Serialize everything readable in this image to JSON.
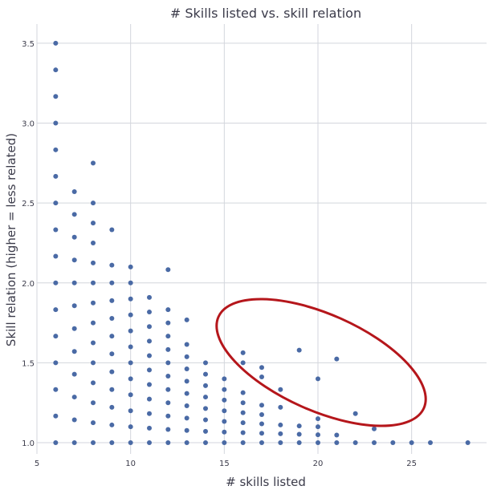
{
  "chart_data": {
    "type": "scatter",
    "title": "# Skills listed vs. skill relation",
    "xlabel": "# skills listed",
    "ylabel": "Skill relation (higher = less related)",
    "xlim": [
      5,
      29
    ],
    "ylim": [
      0.93,
      3.62
    ],
    "xticks": [
      "5",
      "10",
      "15",
      "20",
      "25"
    ],
    "yticks": [
      "1.0",
      "1.5",
      "2.0",
      "2.5",
      "3.0",
      "3.5"
    ],
    "grid": true,
    "colors": {
      "points": "#4a6aa5",
      "annotation": "#b5161b"
    },
    "points": [
      [
        6,
        1.0
      ],
      [
        6,
        1.167
      ],
      [
        6,
        1.333
      ],
      [
        6,
        1.5
      ],
      [
        6,
        1.667
      ],
      [
        6,
        1.833
      ],
      [
        6,
        2.0
      ],
      [
        6,
        2.167
      ],
      [
        6,
        2.333
      ],
      [
        6,
        2.5
      ],
      [
        6,
        2.667
      ],
      [
        6,
        2.833
      ],
      [
        6,
        3.0
      ],
      [
        6,
        3.167
      ],
      [
        6,
        3.333
      ],
      [
        6,
        3.5
      ],
      [
        7,
        1.0
      ],
      [
        7,
        1.143
      ],
      [
        7,
        1.286
      ],
      [
        7,
        1.429
      ],
      [
        7,
        1.571
      ],
      [
        7,
        1.714
      ],
      [
        7,
        1.857
      ],
      [
        7,
        2.0
      ],
      [
        7,
        2.143
      ],
      [
        7,
        2.286
      ],
      [
        7,
        2.429
      ],
      [
        7,
        2.571
      ],
      [
        8,
        1.0
      ],
      [
        8,
        1.125
      ],
      [
        8,
        1.25
      ],
      [
        8,
        1.375
      ],
      [
        8,
        1.5
      ],
      [
        8,
        1.625
      ],
      [
        8,
        1.75
      ],
      [
        8,
        1.875
      ],
      [
        8,
        2.0
      ],
      [
        8,
        2.125
      ],
      [
        8,
        2.25
      ],
      [
        8,
        2.375
      ],
      [
        8,
        2.5
      ],
      [
        8,
        2.75
      ],
      [
        9,
        1.0
      ],
      [
        9,
        1.111
      ],
      [
        9,
        1.222
      ],
      [
        9,
        1.333
      ],
      [
        9,
        1.444
      ],
      [
        9,
        1.556
      ],
      [
        9,
        1.667
      ],
      [
        9,
        1.778
      ],
      [
        9,
        1.889
      ],
      [
        9,
        2.0
      ],
      [
        9,
        2.111
      ],
      [
        9,
        2.333
      ],
      [
        10,
        1.0
      ],
      [
        10,
        1.1
      ],
      [
        10,
        1.2
      ],
      [
        10,
        1.3
      ],
      [
        10,
        1.4
      ],
      [
        10,
        1.5
      ],
      [
        10,
        1.6
      ],
      [
        10,
        1.7
      ],
      [
        10,
        1.8
      ],
      [
        10,
        1.9
      ],
      [
        10,
        2.0
      ],
      [
        10,
        2.1
      ],
      [
        11,
        1.0
      ],
      [
        11,
        1.091
      ],
      [
        11,
        1.182
      ],
      [
        11,
        1.273
      ],
      [
        11,
        1.364
      ],
      [
        11,
        1.455
      ],
      [
        11,
        1.545
      ],
      [
        11,
        1.636
      ],
      [
        11,
        1.727
      ],
      [
        11,
        1.818
      ],
      [
        11,
        1.909
      ],
      [
        12,
        1.0
      ],
      [
        12,
        1.083
      ],
      [
        12,
        1.167
      ],
      [
        12,
        1.25
      ],
      [
        12,
        1.333
      ],
      [
        12,
        1.417
      ],
      [
        12,
        1.5
      ],
      [
        12,
        1.583
      ],
      [
        12,
        1.667
      ],
      [
        12,
        1.75
      ],
      [
        12,
        1.833
      ],
      [
        12,
        2.083
      ],
      [
        13,
        1.0
      ],
      [
        13,
        1.077
      ],
      [
        13,
        1.154
      ],
      [
        13,
        1.231
      ],
      [
        13,
        1.308
      ],
      [
        13,
        1.385
      ],
      [
        13,
        1.462
      ],
      [
        13,
        1.538
      ],
      [
        13,
        1.615
      ],
      [
        13,
        1.769
      ],
      [
        14,
        1.0
      ],
      [
        14,
        1.071
      ],
      [
        14,
        1.143
      ],
      [
        14,
        1.214
      ],
      [
        14,
        1.286
      ],
      [
        14,
        1.357
      ],
      [
        14,
        1.429
      ],
      [
        14,
        1.5
      ],
      [
        15,
        1.0
      ],
      [
        15,
        1.067
      ],
      [
        15,
        1.133
      ],
      [
        15,
        1.2
      ],
      [
        15,
        1.267
      ],
      [
        15,
        1.333
      ],
      [
        15,
        1.4
      ],
      [
        16,
        1.0
      ],
      [
        16,
        1.063
      ],
      [
        16,
        1.125
      ],
      [
        16,
        1.188
      ],
      [
        16,
        1.25
      ],
      [
        16,
        1.313
      ],
      [
        16,
        1.5
      ],
      [
        16,
        1.563
      ],
      [
        17,
        1.0
      ],
      [
        17,
        1.059
      ],
      [
        17,
        1.118
      ],
      [
        17,
        1.176
      ],
      [
        17,
        1.235
      ],
      [
        17,
        1.412
      ],
      [
        17,
        1.471
      ],
      [
        18,
        1.0
      ],
      [
        18,
        1.056
      ],
      [
        18,
        1.111
      ],
      [
        18,
        1.222
      ],
      [
        18,
        1.333
      ],
      [
        19,
        1.0
      ],
      [
        19,
        1.053
      ],
      [
        19,
        1.105
      ],
      [
        19,
        1.579
      ],
      [
        20,
        1.0
      ],
      [
        20,
        1.05
      ],
      [
        20,
        1.1
      ],
      [
        20,
        1.15
      ],
      [
        20,
        1.4
      ],
      [
        21,
        1.0
      ],
      [
        21,
        1.048
      ],
      [
        21,
        1.524
      ],
      [
        22,
        1.0
      ],
      [
        22,
        1.182
      ],
      [
        23,
        1.0
      ],
      [
        23,
        1.087
      ],
      [
        24,
        1.0
      ],
      [
        25,
        1.0
      ],
      [
        26,
        1.0
      ],
      [
        28,
        1.0
      ]
    ]
  }
}
